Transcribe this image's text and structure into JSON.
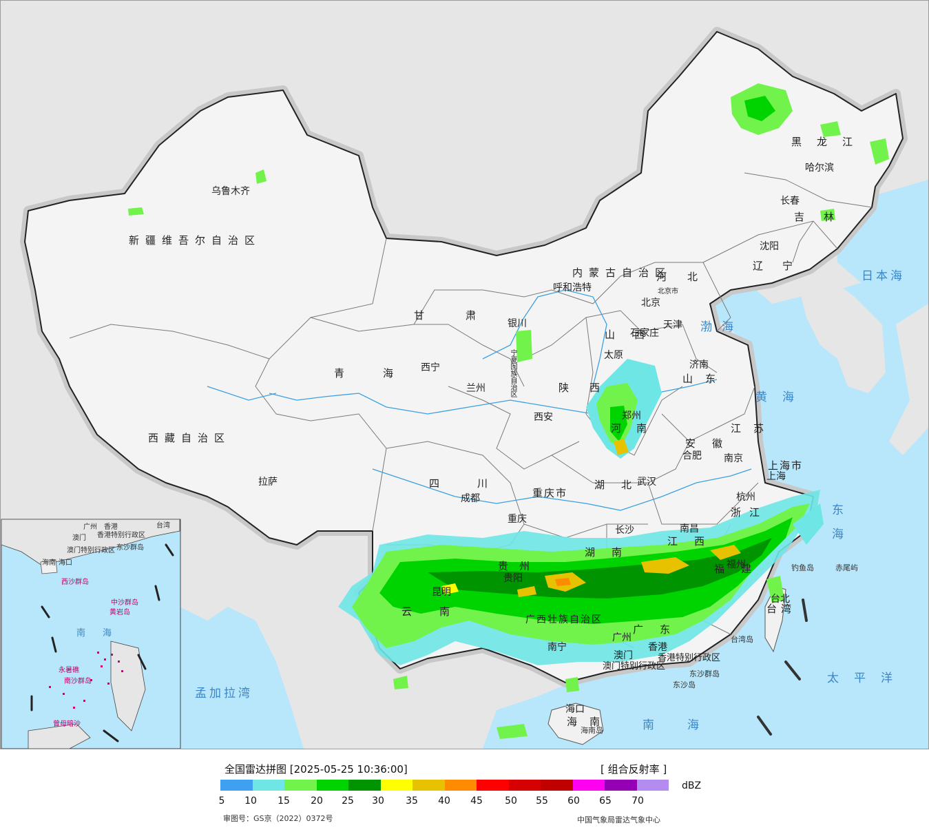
{
  "map": {
    "provinces": [
      {
        "name": "新疆维吾尔自治区"
      },
      {
        "name": "西藏自治区"
      },
      {
        "name": "青海"
      },
      {
        "name": "甘肃"
      },
      {
        "name": "四川"
      },
      {
        "name": "云南"
      },
      {
        "name": "内蒙古自治区"
      },
      {
        "name": "黑龙江"
      },
      {
        "name": "吉林"
      },
      {
        "name": "辽宁"
      },
      {
        "name": "河北"
      },
      {
        "name": "山西"
      },
      {
        "name": "山东"
      },
      {
        "name": "河南"
      },
      {
        "name": "陕西"
      },
      {
        "name": "湖北"
      },
      {
        "name": "湖南"
      },
      {
        "name": "江西"
      },
      {
        "name": "安徽"
      },
      {
        "name": "江苏"
      },
      {
        "name": "浙江"
      },
      {
        "name": "福建"
      },
      {
        "name": "广东"
      },
      {
        "name": "广西壮族自治区"
      },
      {
        "name": "贵州"
      },
      {
        "name": "重庆市"
      },
      {
        "name": "上海市"
      },
      {
        "name": "海南"
      },
      {
        "name": "台湾"
      },
      {
        "name": "宁夏回族自治区"
      },
      {
        "name": "香港特别行政区"
      },
      {
        "name": "澳门特别行政区"
      }
    ],
    "cities": [
      {
        "name": "乌鲁木齐"
      },
      {
        "name": "拉萨"
      },
      {
        "name": "西宁"
      },
      {
        "name": "兰州"
      },
      {
        "name": "银川"
      },
      {
        "name": "呼和浩特"
      },
      {
        "name": "北京"
      },
      {
        "name": "天津"
      },
      {
        "name": "石家庄"
      },
      {
        "name": "太原"
      },
      {
        "name": "济南"
      },
      {
        "name": "郑州"
      },
      {
        "name": "西安"
      },
      {
        "name": "成都"
      },
      {
        "name": "重庆"
      },
      {
        "name": "武汉"
      },
      {
        "name": "合肥"
      },
      {
        "name": "南京"
      },
      {
        "name": "上海"
      },
      {
        "name": "杭州"
      },
      {
        "name": "南昌"
      },
      {
        "name": "长沙"
      },
      {
        "name": "贵阳"
      },
      {
        "name": "昆明"
      },
      {
        "name": "南宁"
      },
      {
        "name": "广州"
      },
      {
        "name": "福州"
      },
      {
        "name": "台北"
      },
      {
        "name": "香港"
      },
      {
        "name": "澳门"
      },
      {
        "name": "海口"
      },
      {
        "name": "哈尔滨"
      },
      {
        "name": "长春"
      },
      {
        "name": "沈阳"
      },
      {
        "name": "北京市"
      }
    ],
    "seas": [
      {
        "name": "日本海"
      },
      {
        "name": "渤海"
      },
      {
        "name": "黄海"
      },
      {
        "name": "东海"
      },
      {
        "name": "南海"
      },
      {
        "name": "太平洋"
      },
      {
        "name": "孟加拉湾"
      }
    ],
    "islands": [
      {
        "name": "钓鱼岛"
      },
      {
        "name": "赤尾屿"
      },
      {
        "name": "台湾岛"
      },
      {
        "name": "东沙群岛"
      },
      {
        "name": "东沙岛"
      },
      {
        "name": "海南岛"
      }
    ],
    "inset": {
      "labels": [
        "海南",
        "南",
        "海",
        "中沙群岛",
        "黄岩岛",
        "南沙群岛",
        "曾母暗沙",
        "永暑礁",
        "东沙群岛",
        "西沙群岛",
        "香港特别行政区",
        "澳门特别行政区",
        "台湾",
        "海口",
        "广州",
        "香港",
        "澳门"
      ]
    }
  },
  "legend": {
    "title": "全国雷达拼图 [2025-05-25 10:36:00]",
    "product": "[ 组合反射率 ]",
    "unit": "dBZ",
    "colors": [
      "#3f9ff0",
      "#6ee6e6",
      "#72f34c",
      "#00d400",
      "#009400",
      "#ffff00",
      "#e6c200",
      "#ff8c00",
      "#ff0000",
      "#d70000",
      "#c00000",
      "#ff00f0",
      "#9600b4",
      "#b48cf0"
    ],
    "ticks": [
      "5",
      "10",
      "15",
      "20",
      "25",
      "30",
      "35",
      "40",
      "45",
      "50",
      "55",
      "60",
      "65",
      "70"
    ],
    "review_number": "审图号：GS京（2022）0372号",
    "credit": "中国气象局雷达气象中心"
  }
}
